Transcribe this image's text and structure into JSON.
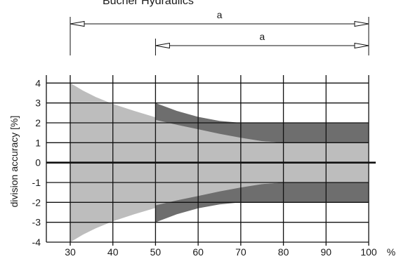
{
  "header": {
    "brand_text": "Bucher Hydraulics"
  },
  "chart_data": {
    "type": "area",
    "ylabel": "division accuracy [%]",
    "x_unit": "%",
    "x_ticks": [
      30,
      40,
      50,
      60,
      70,
      80,
      90,
      100
    ],
    "y_ticks": [
      -4,
      -3,
      -2,
      -1,
      0,
      1,
      2,
      3,
      4
    ],
    "xlim": [
      26,
      104
    ],
    "ylim": [
      -4,
      4.4
    ],
    "grid": true,
    "series": [
      {
        "range_start": 30,
        "range_end": 100,
        "color": "#bdbdbd",
        "upper": [
          [
            30,
            4.0
          ],
          [
            33,
            3.62
          ],
          [
            36,
            3.3
          ],
          [
            40,
            2.95
          ],
          [
            45,
            2.6
          ],
          [
            50,
            2.28
          ],
          [
            55,
            2.0
          ],
          [
            60,
            1.74
          ],
          [
            65,
            1.5
          ],
          [
            70,
            1.28
          ],
          [
            75,
            1.08
          ],
          [
            80,
            1.0
          ],
          [
            100,
            1.0
          ]
        ],
        "lower": [
          [
            30,
            -4.0
          ],
          [
            33,
            -3.62
          ],
          [
            36,
            -3.3
          ],
          [
            40,
            -2.95
          ],
          [
            45,
            -2.6
          ],
          [
            50,
            -2.28
          ],
          [
            55,
            -2.0
          ],
          [
            60,
            -1.74
          ],
          [
            65,
            -1.5
          ],
          [
            70,
            -1.28
          ],
          [
            75,
            -1.08
          ],
          [
            80,
            -1.0
          ],
          [
            100,
            -1.0
          ]
        ]
      },
      {
        "range_start": 50,
        "range_end": 100,
        "color": "#6e6e6e",
        "upper": [
          [
            50,
            3.0
          ],
          [
            55,
            2.6
          ],
          [
            60,
            2.3
          ],
          [
            65,
            2.1
          ],
          [
            70,
            2.0
          ],
          [
            100,
            2.0
          ]
        ],
        "lower": [
          [
            50,
            2.15
          ],
          [
            55,
            1.9
          ],
          [
            60,
            1.68
          ],
          [
            65,
            1.45
          ],
          [
            70,
            1.25
          ],
          [
            75,
            1.08
          ],
          [
            80,
            1.0
          ],
          [
            100,
            1.0
          ]
        ]
      }
    ],
    "dimension_arrows": [
      {
        "label": "a",
        "from": 30,
        "to": 100
      },
      {
        "label": "a",
        "from": 50,
        "to": 100
      }
    ]
  }
}
